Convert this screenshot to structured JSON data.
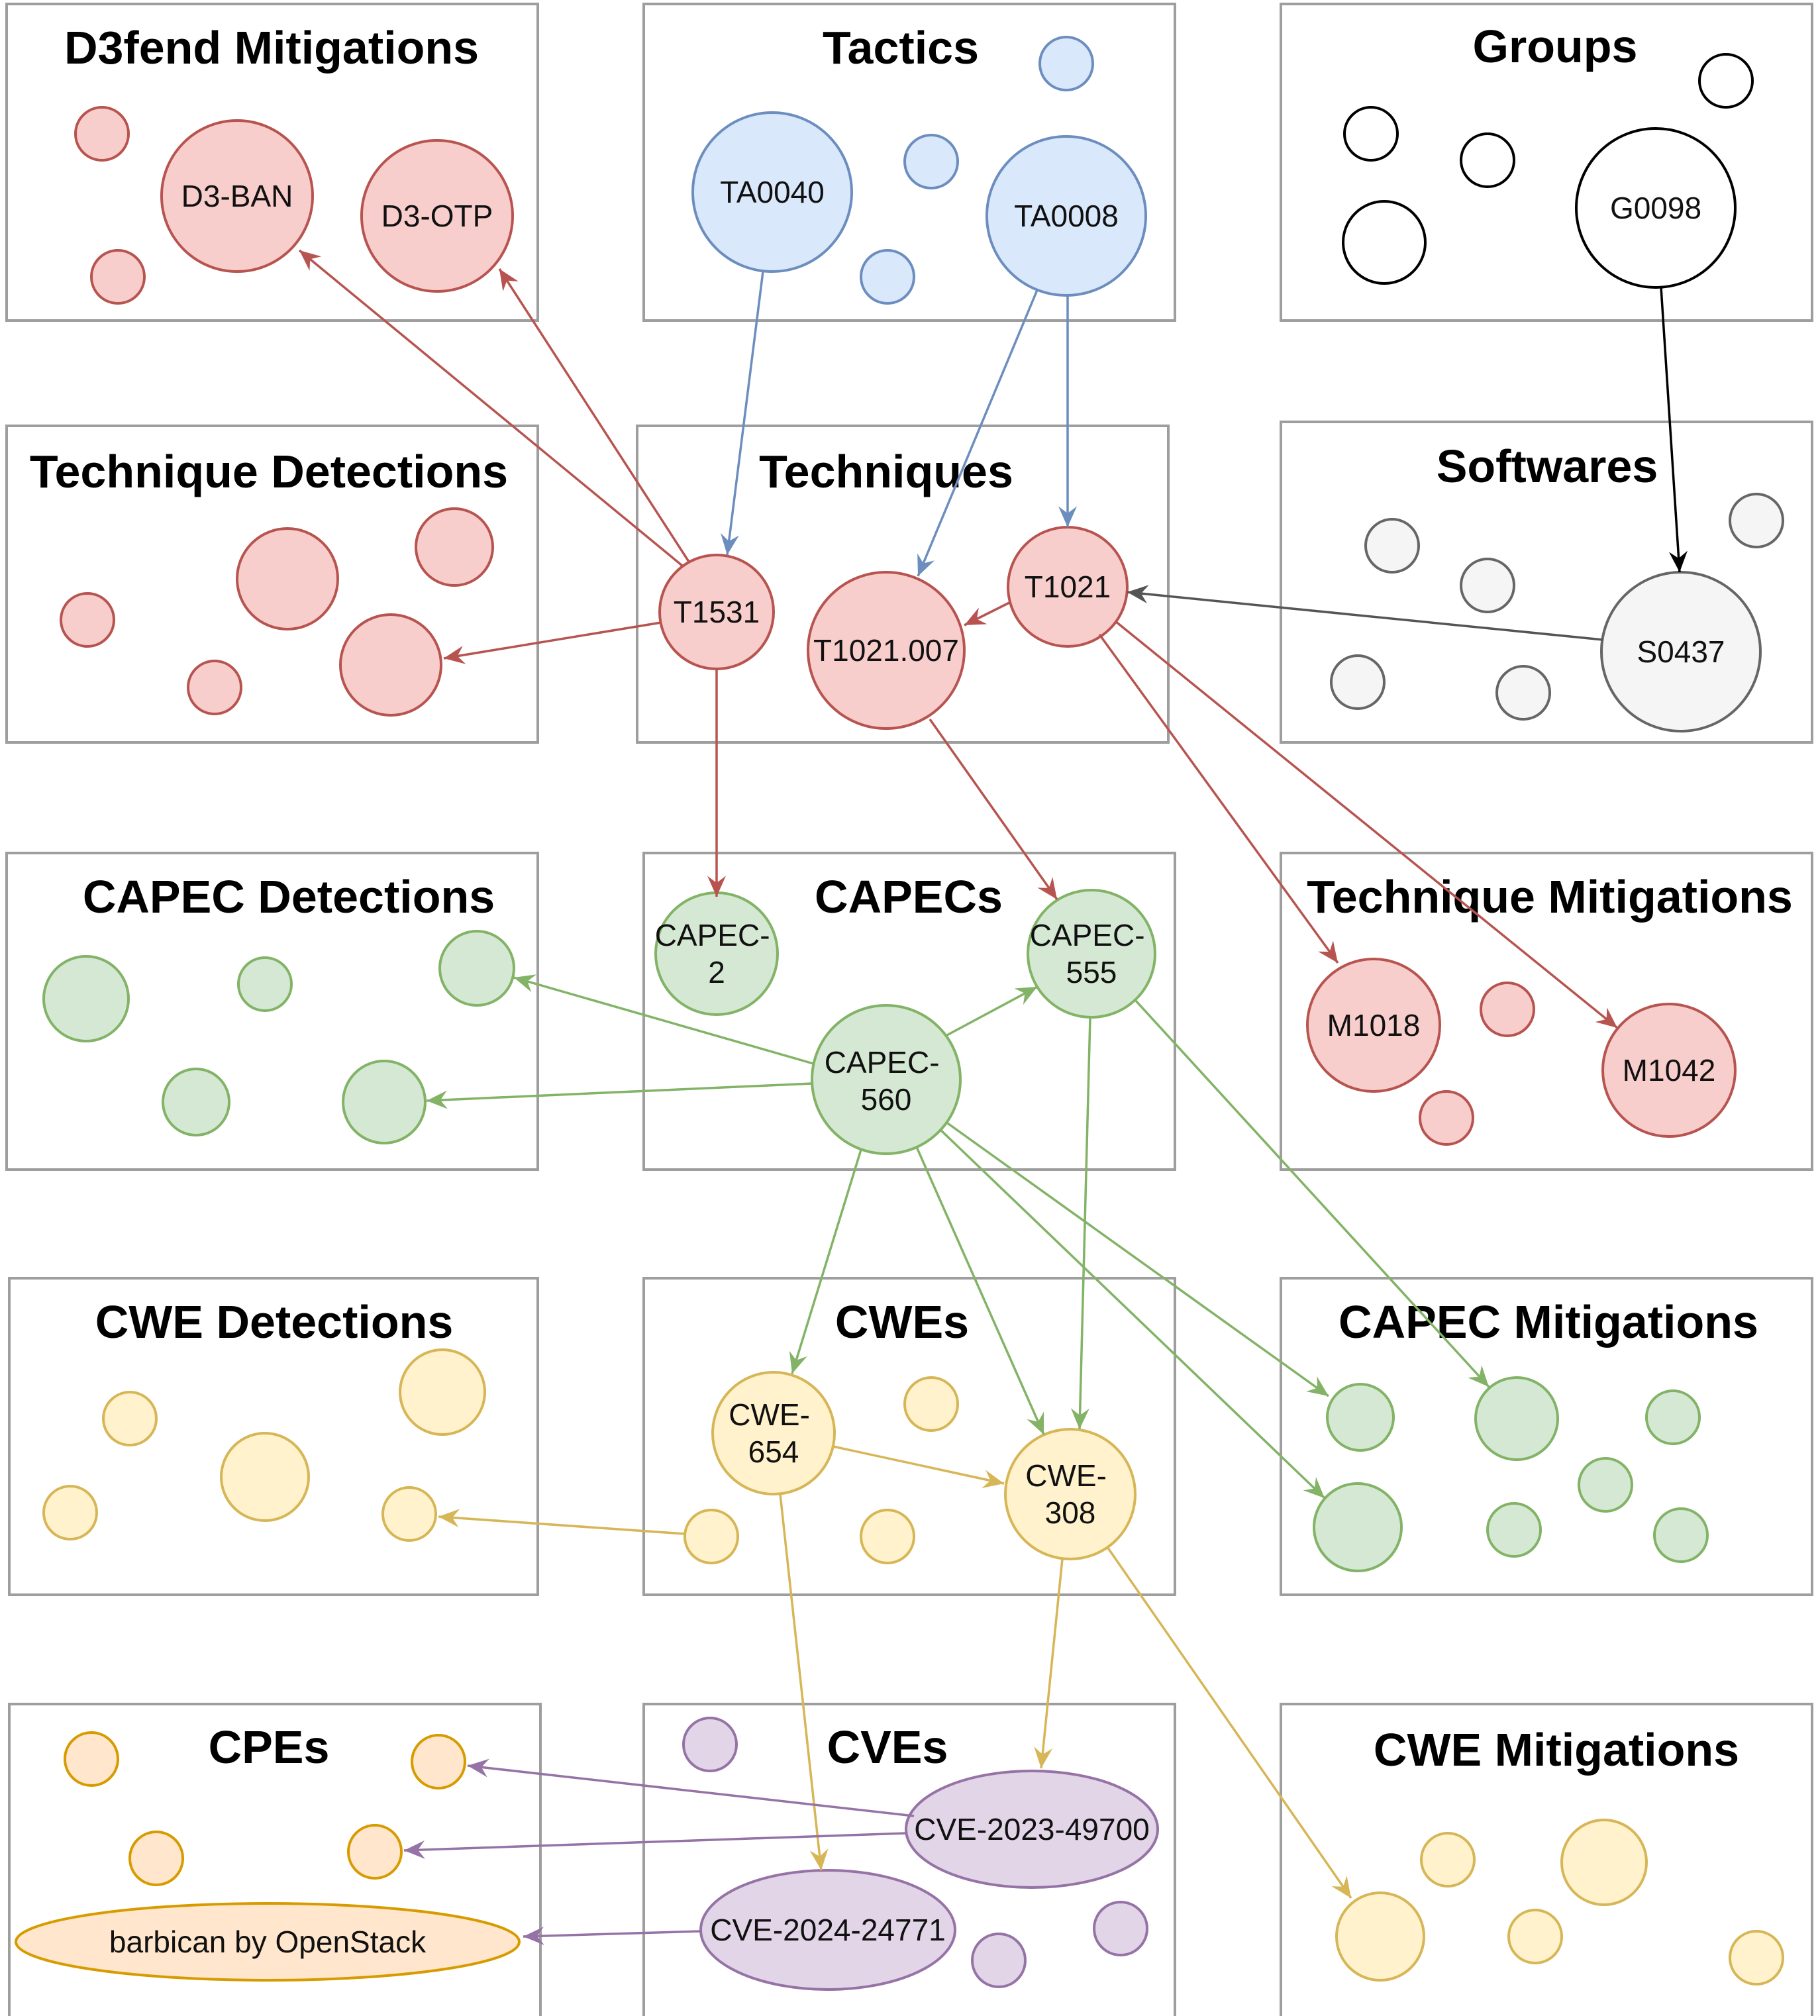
{
  "colors": {
    "red_fill": "#f8cecc",
    "red_stroke": "#b85450",
    "blue_fill": "#dae8fc",
    "blue_stroke": "#6c8ebf",
    "green_fill": "#d5e8d4",
    "green_stroke": "#82b366",
    "yellow_fill": "#fff2cc",
    "yellow_stroke": "#d6b656",
    "purple_fill": "#e1d5e7",
    "purple_stroke": "#9673a6",
    "orange_fill": "#ffe6cc",
    "orange_stroke": "#d79b00",
    "gray_fill": "#f5f5f5",
    "gray_stroke": "#666666",
    "white_fill": "#ffffff",
    "black_stroke": "#000000"
  },
  "panels": {
    "d3fend_mitigations": "D3fend Mitigations",
    "tactics": "Tactics",
    "groups": "Groups",
    "technique_detections": "Technique Detections",
    "techniques": "Techniques",
    "softwares": "Softwares",
    "capec_detections": "CAPEC Detections",
    "capecs": "CAPECs",
    "technique_mitigations": "Technique Mitigations",
    "cwe_detections": "CWE Detections",
    "cwes": "CWEs",
    "capec_mitigations": "CAPEC Mitigations",
    "cpes": "CPEs",
    "cves": "CVEs",
    "cwe_mitigations": "CWE Mitigations"
  },
  "nodes": {
    "d3_ban": "D3-BAN",
    "d3_otp": "D3-OTP",
    "ta0040": "TA0040",
    "ta0008": "TA0008",
    "g0098": "G0098",
    "t1531": "T1531",
    "t1021_007": "T1021.007",
    "t1021": "T1021",
    "s0437": "S0437",
    "capec_2": [
      "CAPEC-",
      "2"
    ],
    "capec_555": [
      "CAPEC-",
      "555"
    ],
    "capec_560": [
      "CAPEC-",
      "560"
    ],
    "m1018": "M1018",
    "m1042": "M1042",
    "cwe_654": [
      "CWE-",
      "654"
    ],
    "cwe_308": [
      "CWE-",
      "308"
    ],
    "cve_2023_49700": "CVE-2023-49700",
    "cve_2024_24771": "CVE-2024-24771",
    "barbican": "barbican by OpenStack"
  },
  "edges": [
    {
      "from": "t1531",
      "to": "d3_ban",
      "color": "red"
    },
    {
      "from": "t1531",
      "to": "d3_otp",
      "color": "red"
    },
    {
      "from": "ta0040",
      "to": "t1531",
      "color": "blue"
    },
    {
      "from": "ta0008",
      "to": "t1021_007",
      "color": "blue"
    },
    {
      "from": "ta0008",
      "to": "t1021",
      "color": "blue"
    },
    {
      "from": "g0098",
      "to": "s0437",
      "color": "black"
    },
    {
      "from": "t1531",
      "to": "technique_detection",
      "color": "red"
    },
    {
      "from": "s0437",
      "to": "t1021",
      "color": "gray"
    },
    {
      "from": "t1021",
      "to": "t1021_007",
      "color": "red"
    },
    {
      "from": "t1531",
      "to": "capec_2",
      "color": "red"
    },
    {
      "from": "t1021_007",
      "to": "capec_555",
      "color": "red"
    },
    {
      "from": "t1021",
      "to": "m1018",
      "color": "red"
    },
    {
      "from": "t1021",
      "to": "m1042",
      "color": "red"
    },
    {
      "from": "capec_560",
      "to": "capec_detection",
      "color": "green"
    },
    {
      "from": "capec_560",
      "to": "capec_detection",
      "color": "green"
    },
    {
      "from": "capec_560",
      "to": "capec_555",
      "color": "green"
    },
    {
      "from": "capec_560",
      "to": "cwe_654",
      "color": "green"
    },
    {
      "from": "capec_560",
      "to": "cwe_308",
      "color": "green"
    },
    {
      "from": "capec_560",
      "to": "capec_mitigation",
      "color": "green"
    },
    {
      "from": "capec_560",
      "to": "capec_mitigation",
      "color": "green"
    },
    {
      "from": "capec_555",
      "to": "cwe_308",
      "color": "green"
    },
    {
      "from": "capec_555",
      "to": "capec_mitigation",
      "color": "green"
    },
    {
      "from": "cwe_654",
      "to": "cwe_308",
      "color": "yellow"
    },
    {
      "from": "cwe",
      "to": "cwe_detection",
      "color": "yellow"
    },
    {
      "from": "cwe_654",
      "to": "cve_2024_24771",
      "color": "yellow"
    },
    {
      "from": "cwe_308",
      "to": "cve_2023_49700",
      "color": "yellow"
    },
    {
      "from": "cwe_308",
      "to": "cwe_mitigation",
      "color": "yellow"
    },
    {
      "from": "cve_2023_49700",
      "to": "cpe",
      "color": "purple"
    },
    {
      "from": "cve_2023_49700",
      "to": "cpe",
      "color": "purple"
    },
    {
      "from": "cve_2024_24771",
      "to": "barbican",
      "color": "purple"
    }
  ]
}
